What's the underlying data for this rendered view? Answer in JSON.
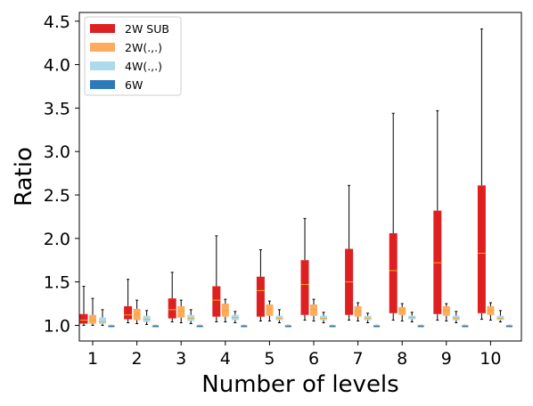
{
  "chart_data": {
    "type": "boxplot",
    "xlabel": "Number of levels",
    "ylabel": "Ratio",
    "ylim": [
      0.82,
      4.6
    ],
    "yticks": [
      "1.0",
      "1.5",
      "2.0",
      "2.5",
      "3.0",
      "3.5",
      "4.0",
      "4.5"
    ],
    "categories": [
      "1",
      "2",
      "3",
      "4",
      "5",
      "6",
      "7",
      "8",
      "9",
      "10"
    ],
    "legend_position": "upper-left",
    "series": [
      {
        "name": "2W SUB",
        "color": "#de2021",
        "boxes": [
          {
            "whislo": 1.0,
            "q1": 1.02,
            "med": 1.06,
            "q3": 1.13,
            "whishi": 1.45
          },
          {
            "whislo": 1.03,
            "q1": 1.07,
            "med": 1.12,
            "q3": 1.22,
            "whishi": 1.53
          },
          {
            "whislo": 1.04,
            "q1": 1.08,
            "med": 1.18,
            "q3": 1.31,
            "whishi": 1.61
          },
          {
            "whislo": 1.04,
            "q1": 1.1,
            "med": 1.29,
            "q3": 1.45,
            "whishi": 2.03
          },
          {
            "whislo": 1.05,
            "q1": 1.1,
            "med": 1.4,
            "q3": 1.56,
            "whishi": 1.87
          },
          {
            "whislo": 1.06,
            "q1": 1.12,
            "med": 1.47,
            "q3": 1.75,
            "whishi": 2.23
          },
          {
            "whislo": 1.06,
            "q1": 1.12,
            "med": 1.5,
            "q3": 1.88,
            "whishi": 2.61
          },
          {
            "whislo": 1.06,
            "q1": 1.14,
            "med": 1.63,
            "q3": 2.06,
            "whishi": 3.44
          },
          {
            "whislo": 1.06,
            "q1": 1.13,
            "med": 1.72,
            "q3": 2.32,
            "whishi": 3.47
          },
          {
            "whislo": 1.07,
            "q1": 1.14,
            "med": 1.83,
            "q3": 2.61,
            "whishi": 4.41
          }
        ]
      },
      {
        "name": "2W(.,.)",
        "color": "#fdab5c",
        "boxes": [
          {
            "whislo": 1.0,
            "q1": 1.02,
            "med": 1.06,
            "q3": 1.12,
            "whishi": 1.31
          },
          {
            "whislo": 1.02,
            "q1": 1.06,
            "med": 1.12,
            "q3": 1.19,
            "whishi": 1.29
          },
          {
            "whislo": 1.03,
            "q1": 1.09,
            "med": 1.16,
            "q3": 1.22,
            "whishi": 1.29
          },
          {
            "whislo": 1.04,
            "q1": 1.1,
            "med": 1.17,
            "q3": 1.25,
            "whishi": 1.3
          },
          {
            "whislo": 1.05,
            "q1": 1.11,
            "med": 1.18,
            "q3": 1.24,
            "whishi": 1.28
          },
          {
            "whislo": 1.05,
            "q1": 1.11,
            "med": 1.18,
            "q3": 1.24,
            "whishi": 1.3
          },
          {
            "whislo": 1.05,
            "q1": 1.1,
            "med": 1.16,
            "q3": 1.22,
            "whishi": 1.26
          },
          {
            "whislo": 1.05,
            "q1": 1.12,
            "med": 1.17,
            "q3": 1.21,
            "whishi": 1.25
          },
          {
            "whislo": 1.05,
            "q1": 1.11,
            "med": 1.17,
            "q3": 1.22,
            "whishi": 1.25
          },
          {
            "whislo": 1.06,
            "q1": 1.12,
            "med": 1.17,
            "q3": 1.22,
            "whishi": 1.26
          }
        ]
      },
      {
        "name": "4W(.,.)",
        "color": "#acdaec",
        "boxes": [
          {
            "whislo": 1.0,
            "q1": 1.02,
            "med": 1.04,
            "q3": 1.09,
            "whishi": 1.18
          },
          {
            "whislo": 1.01,
            "q1": 1.04,
            "med": 1.07,
            "q3": 1.11,
            "whishi": 1.17
          },
          {
            "whislo": 1.02,
            "q1": 1.05,
            "med": 1.08,
            "q3": 1.12,
            "whishi": 1.18
          },
          {
            "whislo": 1.03,
            "q1": 1.06,
            "med": 1.09,
            "q3": 1.12,
            "whishi": 1.16
          },
          {
            "whislo": 1.03,
            "q1": 1.06,
            "med": 1.08,
            "q3": 1.11,
            "whishi": 1.18
          },
          {
            "whislo": 1.03,
            "q1": 1.06,
            "med": 1.08,
            "q3": 1.11,
            "whishi": 1.15
          },
          {
            "whislo": 1.03,
            "q1": 1.06,
            "med": 1.08,
            "q3": 1.11,
            "whishi": 1.14
          },
          {
            "whislo": 1.04,
            "q1": 1.07,
            "med": 1.09,
            "q3": 1.11,
            "whishi": 1.15
          },
          {
            "whislo": 1.03,
            "q1": 1.06,
            "med": 1.08,
            "q3": 1.11,
            "whishi": 1.16
          },
          {
            "whislo": 1.04,
            "q1": 1.06,
            "med": 1.08,
            "q3": 1.11,
            "whishi": 1.17
          }
        ]
      },
      {
        "name": "6W",
        "color": "#2e7ab9",
        "boxes": [
          {
            "whislo": 1.0,
            "q1": 1.0,
            "med": 1.0,
            "q3": 1.0,
            "whishi": 1.0
          },
          {
            "whislo": 1.0,
            "q1": 1.0,
            "med": 1.0,
            "q3": 1.0,
            "whishi": 1.0
          },
          {
            "whislo": 1.0,
            "q1": 1.0,
            "med": 1.0,
            "q3": 1.0,
            "whishi": 1.0
          },
          {
            "whislo": 1.0,
            "q1": 1.0,
            "med": 1.0,
            "q3": 1.0,
            "whishi": 1.0
          },
          {
            "whislo": 1.0,
            "q1": 1.0,
            "med": 1.0,
            "q3": 1.0,
            "whishi": 1.0
          },
          {
            "whislo": 1.0,
            "q1": 1.0,
            "med": 1.0,
            "q3": 1.0,
            "whishi": 1.0
          },
          {
            "whislo": 1.0,
            "q1": 1.0,
            "med": 1.0,
            "q3": 1.0,
            "whishi": 1.0
          },
          {
            "whislo": 1.0,
            "q1": 1.0,
            "med": 1.0,
            "q3": 1.0,
            "whishi": 1.0
          },
          {
            "whislo": 1.0,
            "q1": 1.0,
            "med": 1.0,
            "q3": 1.0,
            "whishi": 1.0
          },
          {
            "whislo": 1.0,
            "q1": 1.0,
            "med": 1.0,
            "q3": 1.0,
            "whishi": 1.0
          }
        ]
      }
    ],
    "median_color": "#f5a623"
  }
}
